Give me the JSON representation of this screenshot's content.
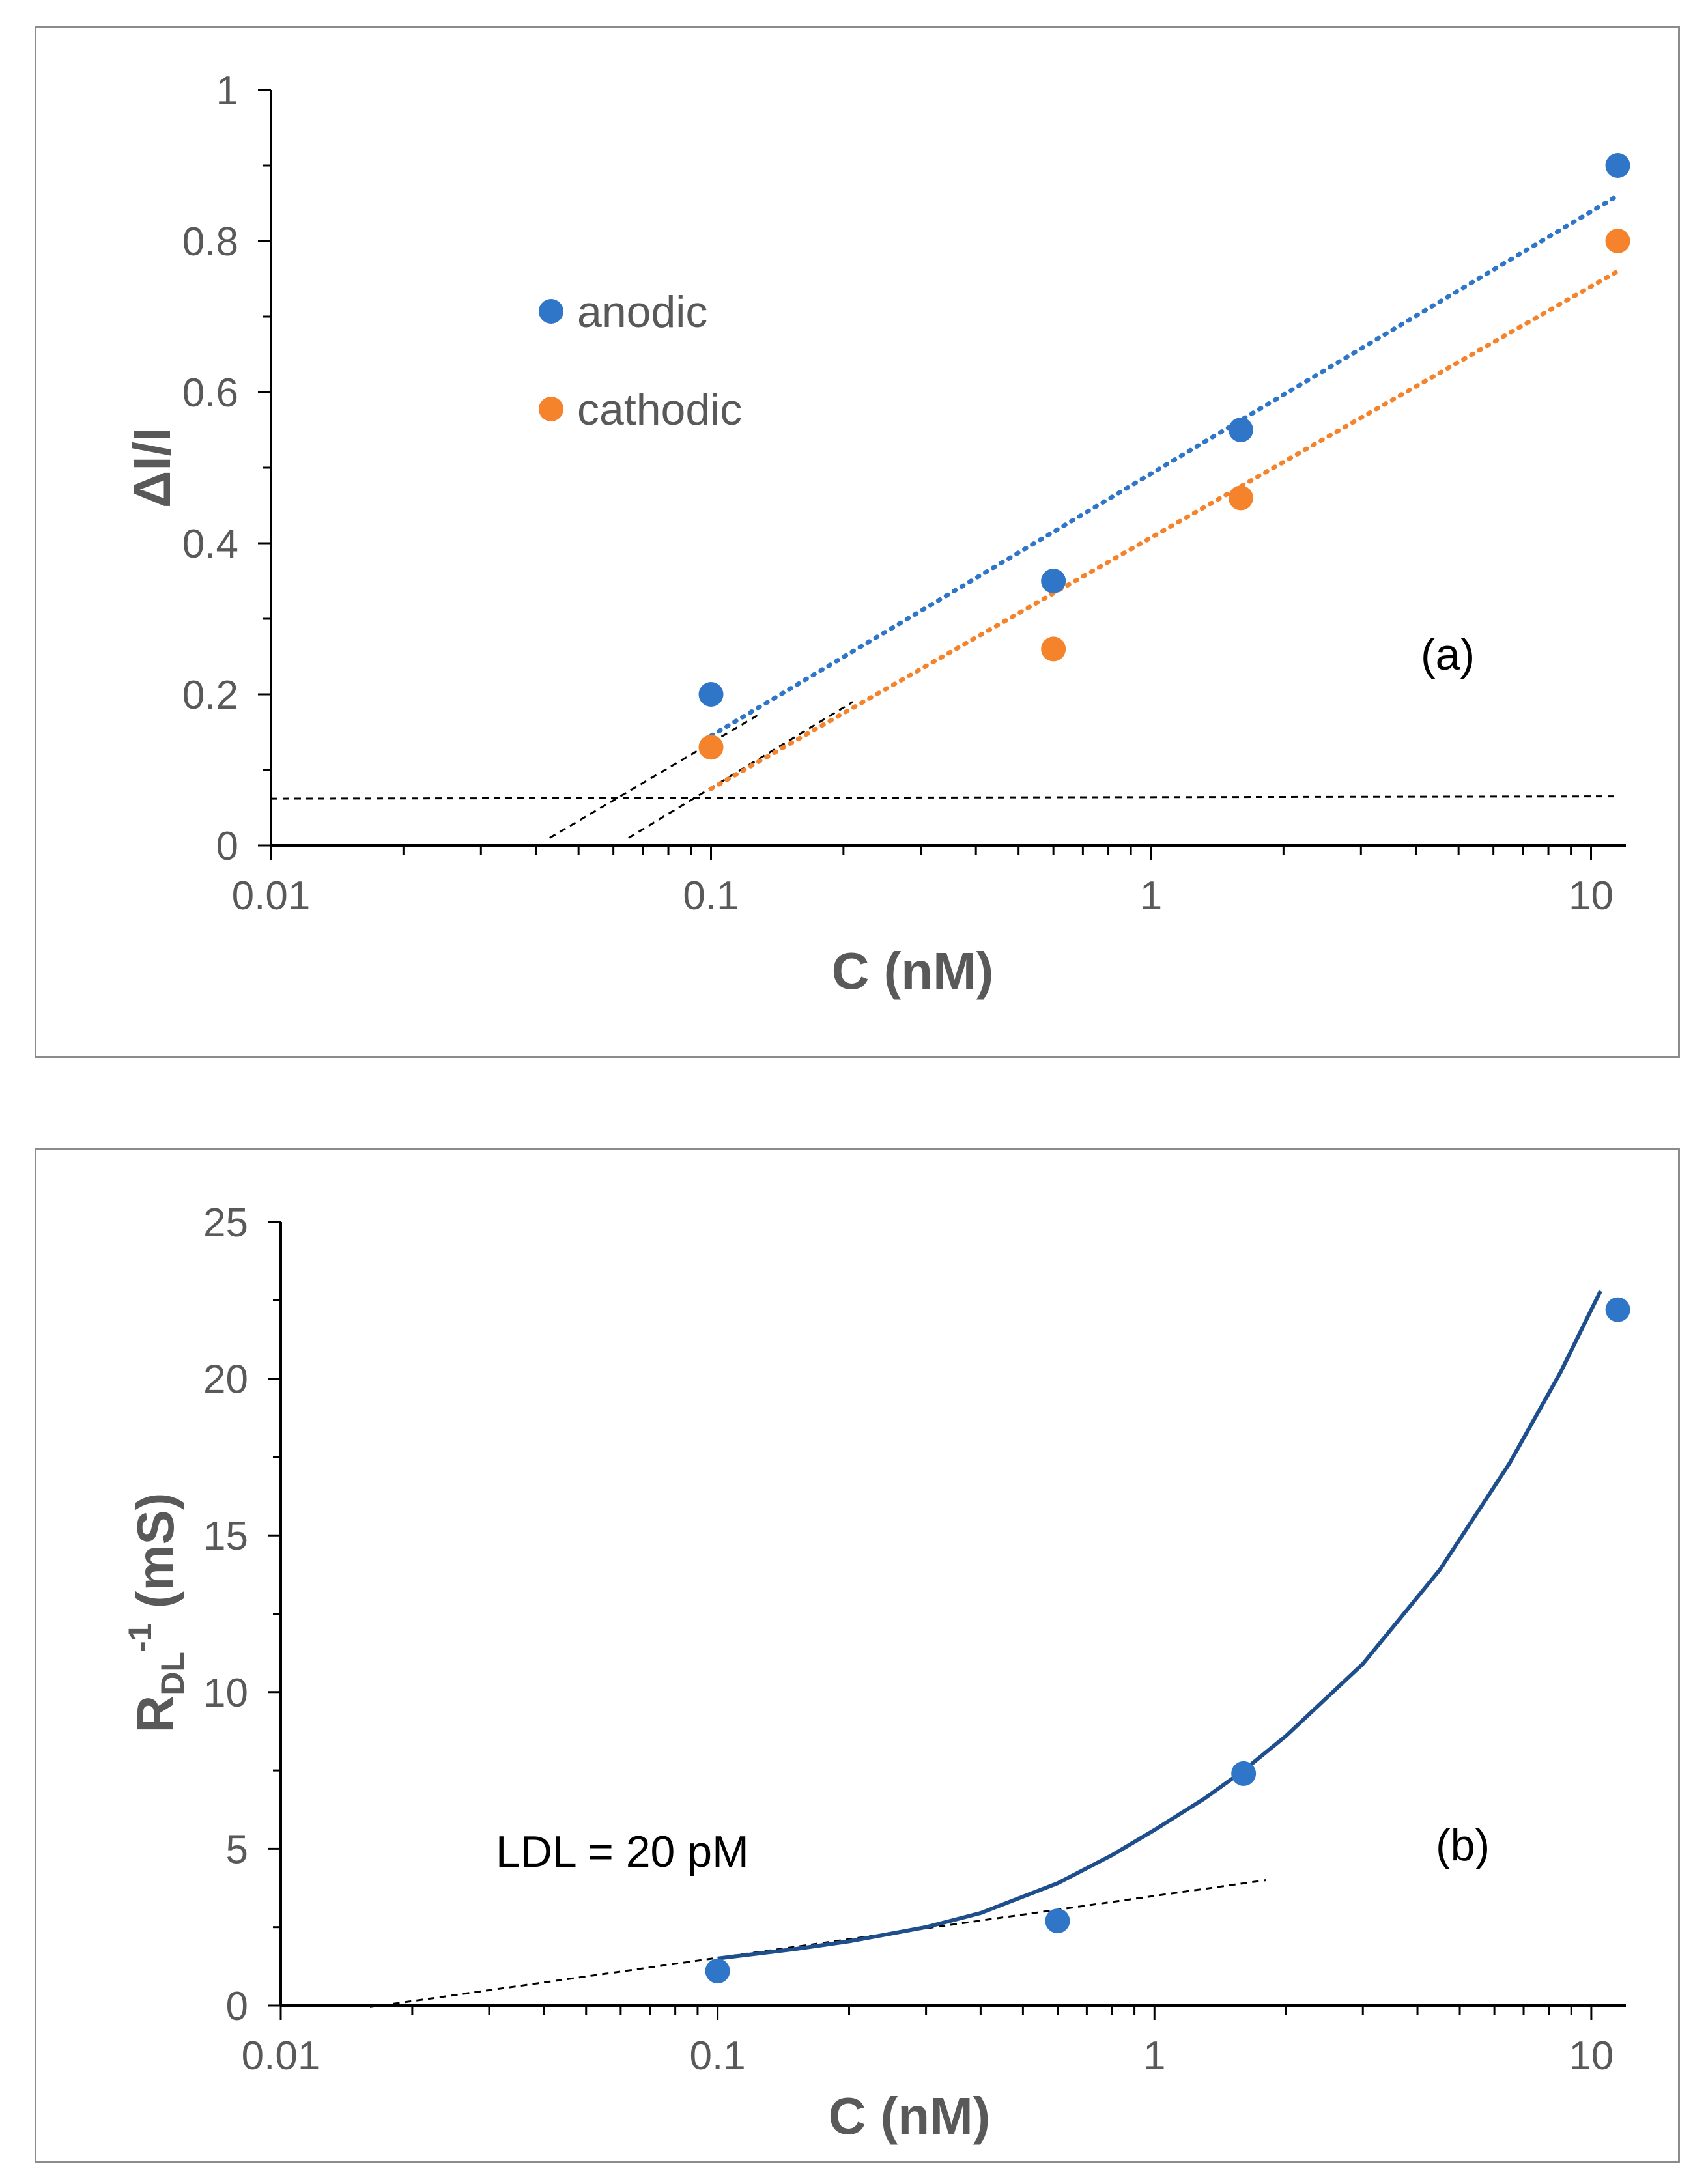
{
  "chart_data": [
    {
      "id": "a",
      "type": "scatter",
      "xscale": "log",
      "xlim": [
        0.01,
        12
      ],
      "ylim": [
        0,
        1
      ],
      "x_ticks": [
        0.01,
        0.1,
        1,
        10
      ],
      "x_tick_labels": [
        "0.01",
        "0.1",
        "1",
        "10"
      ],
      "y_ticks": [
        0,
        0.2,
        0.4,
        0.6,
        0.8,
        1
      ],
      "y_tick_labels": [
        "0",
        "0.2",
        "0.4",
        "0.6",
        "0.8",
        "1"
      ],
      "xlabel": "C (nM)",
      "ylabel": "ΔI/I",
      "annotation": "(a)",
      "legend_position": "upper-left",
      "series": [
        {
          "name": "anodic",
          "color": "#2f75c8",
          "x": [
            0.1,
            0.6,
            1.6,
            11.5
          ],
          "y": [
            0.2,
            0.35,
            0.55,
            0.9
          ],
          "trend": {
            "style": "dotted",
            "x": [
              0.1,
              11.5
            ],
            "y": [
              0.145,
              0.86
            ]
          }
        },
        {
          "name": "cathodic",
          "color": "#f5832b",
          "x": [
            0.1,
            0.6,
            1.6,
            11.5
          ],
          "y": [
            0.13,
            0.26,
            0.46,
            0.8
          ],
          "trend": {
            "style": "dotted",
            "x": [
              0.1,
              11.5
            ],
            "y": [
              0.075,
              0.76
            ]
          }
        }
      ],
      "guide_lines": [
        {
          "style": "dashed",
          "x": [
            0.01,
            11.5
          ],
          "y": [
            0.062,
            0.065
          ]
        },
        {
          "style": "dashed",
          "x": [
            0.043,
            0.13
          ],
          "y": [
            0.01,
            0.175
          ]
        },
        {
          "style": "dashed",
          "x": [
            0.065,
            0.21
          ],
          "y": [
            0.01,
            0.19
          ]
        }
      ]
    },
    {
      "id": "b",
      "type": "scatter",
      "xscale": "log",
      "xlim": [
        0.01,
        12
      ],
      "ylim": [
        0,
        25
      ],
      "x_ticks": [
        0.01,
        0.1,
        1,
        10
      ],
      "x_tick_labels": [
        "0.01",
        "0.1",
        "1",
        "10"
      ],
      "y_ticks": [
        0,
        5,
        10,
        15,
        20,
        25
      ],
      "y_tick_labels": [
        "0",
        "5",
        "10",
        "15",
        "20",
        "25"
      ],
      "xlabel": "C (nM)",
      "ylabel_main": "R",
      "ylabel_sub": "DL",
      "ylabel_sup": "-1",
      "ylabel_rest": " (mS)",
      "annotation": "(b)",
      "ldl_label": "LDL = 20 pM",
      "series": [
        {
          "name": "data",
          "color": "#2f75c8",
          "x": [
            0.1,
            0.6,
            1.6,
            11.5
          ],
          "y": [
            1.1,
            2.7,
            7.4,
            22.2
          ]
        }
      ],
      "fit_curve": {
        "color": "#1f4e8c",
        "x": [
          0.1,
          0.15,
          0.2,
          0.3,
          0.4,
          0.6,
          0.8,
          1.0,
          1.3,
          1.6,
          2.0,
          3.0,
          4.5,
          6.5,
          8.5,
          10.5
        ],
        "y": [
          1.5,
          1.8,
          2.05,
          2.5,
          2.95,
          3.9,
          4.8,
          5.6,
          6.6,
          7.5,
          8.6,
          10.9,
          13.9,
          17.3,
          20.2,
          22.8
        ]
      },
      "guide_lines": [
        {
          "style": "dashed",
          "x": [
            0.016,
            1.8
          ],
          "y": [
            -0.05,
            4.0
          ]
        }
      ]
    }
  ]
}
